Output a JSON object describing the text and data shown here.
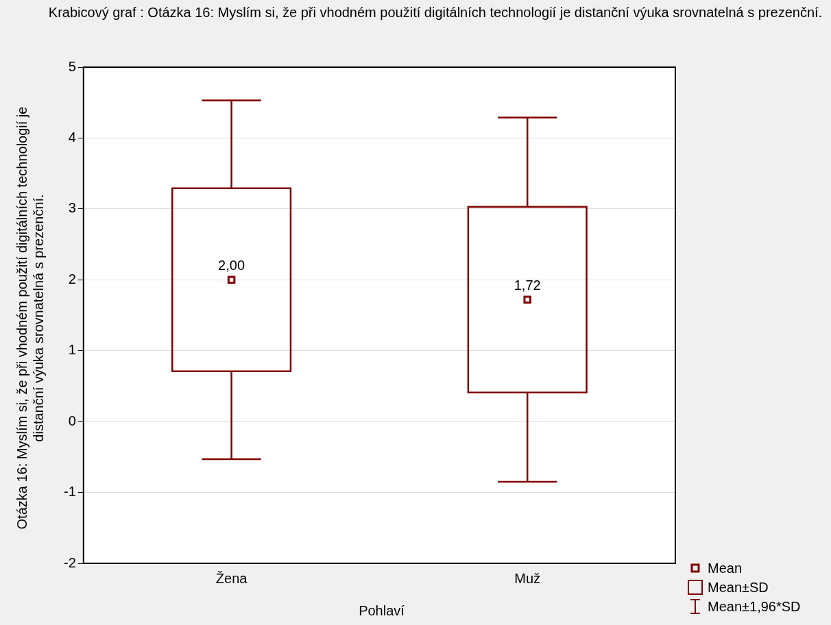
{
  "chart_data": {
    "type": "box",
    "title": "Krabicový  graf :   Otázka 16: Myslím si, že při vhodném použití digitálních technologií je distanční výuka srovnatelná s prezenční.",
    "xlabel": "Pohlaví",
    "ylabel": "Otázka 16: Myslím si, že při vhodném použití digitálních technologií je distanční výuka srovnatelná s prezenční.",
    "categories": [
      "Žena",
      "Muž"
    ],
    "color": "#800000",
    "boxes": [
      {
        "low": -0.53,
        "q1": 0.71,
        "q3": 3.29,
        "high": 4.53,
        "mean": 2.0
      },
      {
        "low": -0.85,
        "q1": 0.41,
        "q3": 3.03,
        "high": 4.29,
        "mean": 1.72
      }
    ],
    "ylim": [
      -2,
      5
    ],
    "yticks": [
      -2,
      -1,
      0,
      1,
      2,
      3,
      4,
      5
    ],
    "grid": "y",
    "marker": "square",
    "annotations": [
      "2,00",
      "1,72",
      "Mean",
      "Mean±SD",
      "Mean±1,96*SD"
    ]
  }
}
